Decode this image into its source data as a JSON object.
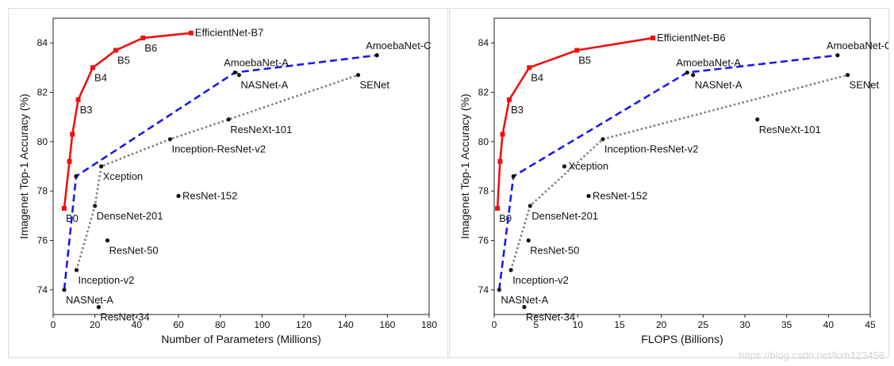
{
  "watermark": "https://blog.csdn.net/kxh123456",
  "chart_data": [
    {
      "type": "line",
      "xlabel": "Number of Parameters (Millions)",
      "ylabel": "Imagenet Top-1 Accuracy (%)",
      "xlim": [
        0,
        180
      ],
      "ylim": [
        73,
        85
      ],
      "xticks": [
        0,
        20,
        40,
        60,
        80,
        100,
        120,
        140,
        160,
        180
      ],
      "yticks": [
        74,
        76,
        78,
        80,
        82,
        84
      ],
      "grid": false,
      "series": [
        {
          "color": "#ee1111",
          "style": "solid",
          "marker": "square",
          "points": [
            {
              "x": 5.3,
              "y": 77.3,
              "label": "B0",
              "lp": "below"
            },
            {
              "x": 7.8,
              "y": 79.2,
              "label": "",
              "lp": "none"
            },
            {
              "x": 9.2,
              "y": 80.3,
              "label": "",
              "lp": "none"
            },
            {
              "x": 12,
              "y": 81.7,
              "label": "B3",
              "lp": "below"
            },
            {
              "x": 19,
              "y": 83.0,
              "label": "B4",
              "lp": "below"
            },
            {
              "x": 30,
              "y": 83.7,
              "label": "B5",
              "lp": "below"
            },
            {
              "x": 43,
              "y": 84.2,
              "label": "B6",
              "lp": "below"
            },
            {
              "x": 66,
              "y": 84.4,
              "label": "EfficientNet-B7",
              "lp": "right"
            }
          ]
        },
        {
          "color": "#1a1aee",
          "style": "dashed",
          "marker": "circle",
          "points": [
            {
              "x": 5.3,
              "y": 74.0,
              "label": "NASNet-A",
              "lp": "below"
            },
            {
              "x": 11,
              "y": 78.6,
              "label": "",
              "lp": "none"
            },
            {
              "x": 87,
              "y": 82.8,
              "label": "AmoebaNet-A",
              "lp": "above"
            },
            {
              "x": 155,
              "y": 83.5,
              "label": "AmoebaNet-C",
              "lp": "above"
            }
          ]
        },
        {
          "color": "#808080",
          "style": "dotted",
          "marker": "circle",
          "points": [
            {
              "x": 11.2,
              "y": 74.8,
              "label": "Inception-v2",
              "lp": "below"
            },
            {
              "x": 20,
              "y": 77.4,
              "label": "DenseNet-201",
              "lp": "below"
            },
            {
              "x": 23,
              "y": 79.0,
              "label": "Xception",
              "lp": "below"
            },
            {
              "x": 56,
              "y": 80.1,
              "label": "Inception-ResNet-v2",
              "lp": "below"
            },
            {
              "x": 84,
              "y": 80.9,
              "label": "ResNeXt-101",
              "lp": "below"
            },
            {
              "x": 146,
              "y": 82.7,
              "label": "SENet",
              "lp": "below"
            }
          ]
        }
      ],
      "points": [
        {
          "x": 89,
          "y": 82.7,
          "label": "NASNet-A",
          "lp": "below"
        },
        {
          "x": 60,
          "y": 77.8,
          "label": "ResNet-152",
          "lp": "right"
        },
        {
          "x": 26,
          "y": 76.0,
          "label": "ResNet-50",
          "lp": "below"
        },
        {
          "x": 21.8,
          "y": 73.3,
          "label": "ResNet-34",
          "lp": "below"
        }
      ]
    },
    {
      "type": "line",
      "xlabel": "FLOPS (Billions)",
      "ylabel": "Imagenet Top-1 Accuracy (%)",
      "xlim": [
        0,
        45
      ],
      "ylim": [
        73,
        85
      ],
      "xticks": [
        0,
        5,
        10,
        15,
        20,
        25,
        30,
        35,
        40,
        45
      ],
      "yticks": [
        74,
        76,
        78,
        80,
        82,
        84
      ],
      "grid": false,
      "series": [
        {
          "color": "#ee1111",
          "style": "solid",
          "marker": "square",
          "points": [
            {
              "x": 0.39,
              "y": 77.3,
              "label": "B0",
              "lp": "below"
            },
            {
              "x": 0.7,
              "y": 79.2,
              "label": "",
              "lp": "none"
            },
            {
              "x": 1.0,
              "y": 80.3,
              "label": "",
              "lp": "none"
            },
            {
              "x": 1.8,
              "y": 81.7,
              "label": "B3",
              "lp": "below"
            },
            {
              "x": 4.2,
              "y": 83.0,
              "label": "B4",
              "lp": "below"
            },
            {
              "x": 9.9,
              "y": 83.7,
              "label": "B5",
              "lp": "below"
            },
            {
              "x": 19,
              "y": 84.2,
              "label": "EfficientNet-B6",
              "lp": "right"
            }
          ]
        },
        {
          "color": "#1a1aee",
          "style": "dashed",
          "marker": "circle",
          "points": [
            {
              "x": 0.6,
              "y": 74.0,
              "label": "NASNet-A",
              "lp": "below"
            },
            {
              "x": 2.3,
              "y": 78.6,
              "label": "",
              "lp": "none"
            },
            {
              "x": 23.1,
              "y": 82.8,
              "label": "AmoebaNet-A",
              "lp": "above"
            },
            {
              "x": 41.1,
              "y": 83.5,
              "label": "AmoebaNet-C",
              "lp": "above"
            }
          ]
        },
        {
          "color": "#808080",
          "style": "dotted",
          "marker": "circle",
          "points": [
            {
              "x": 2.0,
              "y": 74.8,
              "label": "Inception-v2",
              "lp": "below"
            },
            {
              "x": 4.3,
              "y": 77.4,
              "label": "DenseNet-201",
              "lp": "below"
            },
            {
              "x": 13.0,
              "y": 80.1,
              "label": "Inception-ResNet-v2",
              "lp": "below"
            },
            {
              "x": 42.3,
              "y": 82.7,
              "label": "SENet",
              "lp": "below"
            }
          ]
        }
      ],
      "points": [
        {
          "x": 23.8,
          "y": 82.7,
          "label": "NASNet-A",
          "lp": "below"
        },
        {
          "x": 8.4,
          "y": 79.0,
          "label": "Xception",
          "lp": "right"
        },
        {
          "x": 31.5,
          "y": 80.9,
          "label": "ResNeXt-101",
          "lp": "below"
        },
        {
          "x": 11.3,
          "y": 77.8,
          "label": "ResNet-152",
          "lp": "right"
        },
        {
          "x": 4.1,
          "y": 76.0,
          "label": "ResNet-50",
          "lp": "below"
        },
        {
          "x": 3.6,
          "y": 73.3,
          "label": "ResNet-34",
          "lp": "below"
        }
      ]
    }
  ]
}
